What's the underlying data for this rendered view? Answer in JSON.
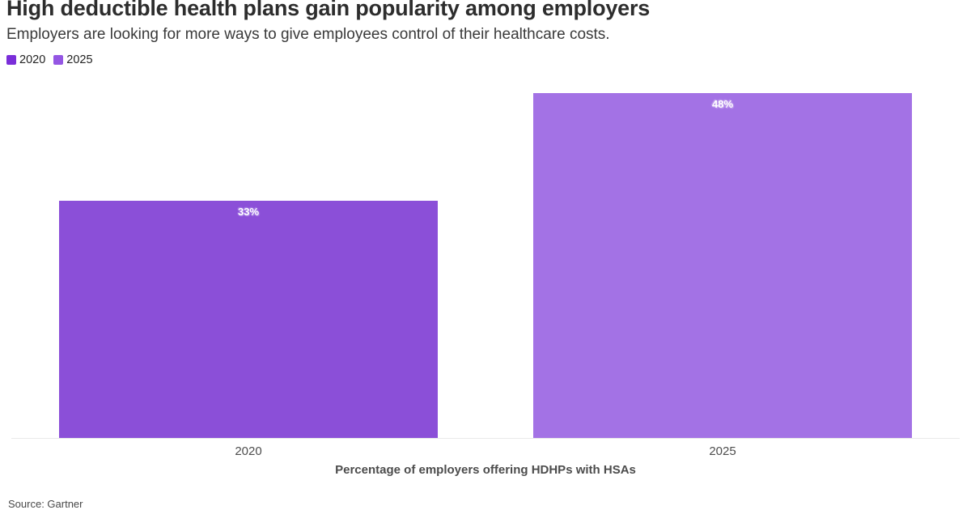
{
  "header": {
    "title": "High deductible health plans gain popularity among employers",
    "subtitle": "Employers are looking for more ways to give employees control of their healthcare costs."
  },
  "legend": {
    "items": [
      {
        "label": "2020",
        "color": "#7a2ed9"
      },
      {
        "label": "2025",
        "color": "#9456e3"
      }
    ]
  },
  "footer": {
    "source": "Source: Gartner"
  },
  "chart_data": {
    "type": "bar",
    "title": "High deductible health plans gain popularity among employers",
    "subtitle": "Employers are looking for more ways to give employees control of their healthcare costs.",
    "categories": [
      "2020",
      "2025"
    ],
    "values": [
      33,
      48
    ],
    "value_labels": [
      "33%",
      "48%"
    ],
    "bar_colors": [
      "#8b4fd8",
      "#a372e5"
    ],
    "legend_colors": [
      "#7a2ed9",
      "#9456e3"
    ],
    "label_text_color": "#ffffff",
    "label_halo_colors": [
      "#a87fe6",
      "#c3a2ee"
    ],
    "xlabel": "Percentage of employers offering HDHPs with HSAs",
    "ylabel": "",
    "ylim": [
      0,
      48
    ],
    "grid": false,
    "legend_position": "top-left",
    "axis_line_color": "#e9e9e9"
  }
}
